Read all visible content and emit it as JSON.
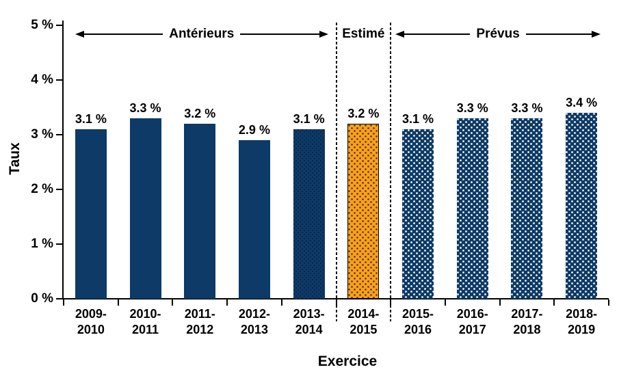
{
  "chart_data": {
    "type": "bar",
    "title": "",
    "xlabel": "Exercice",
    "ylabel": "Taux",
    "categories": [
      "2009-2010",
      "2010-2011",
      "2011-2012",
      "2012-2013",
      "2013-2014",
      "2014-2015",
      "2015-2016",
      "2016-2017",
      "2017-2018",
      "2018-2019"
    ],
    "values": [
      3.1,
      3.3,
      3.2,
      2.9,
      3.1,
      3.2,
      3.1,
      3.3,
      3.3,
      3.4
    ],
    "value_labels": [
      "3.1 %",
      "3.3 %",
      "3.2 %",
      "2.9 %",
      "3.1 %",
      "3.2 %",
      "3.1 %",
      "3.3 %",
      "3.3 %",
      "3.4 %"
    ],
    "y_ticks": [
      "0 %",
      "1 %",
      "2 %",
      "3 %",
      "4 %",
      "5 %"
    ],
    "ylim": [
      0,
      5
    ],
    "grid": false,
    "legend": "none",
    "bar_styles": [
      "solid-navy",
      "solid-navy",
      "solid-navy",
      "solid-navy",
      "navy-dark-dots",
      "orange-dots",
      "navy-white-dots",
      "navy-white-dots",
      "navy-white-dots",
      "navy-white-dots"
    ],
    "sections": [
      {
        "label": "Antérieurs",
        "from": 0,
        "to": 5,
        "arrow": true
      },
      {
        "label": "Estimé",
        "from": 5,
        "to": 6,
        "arrow": false
      },
      {
        "label": "Prévus",
        "from": 6,
        "to": 10,
        "arrow": true
      }
    ],
    "colors": {
      "navy": "#0D3A66",
      "orange": "#F8A01D",
      "orange_dot": "#4A2800",
      "white_dot": "#FFFFFF",
      "axis": "#000000",
      "text": "#000000"
    }
  }
}
